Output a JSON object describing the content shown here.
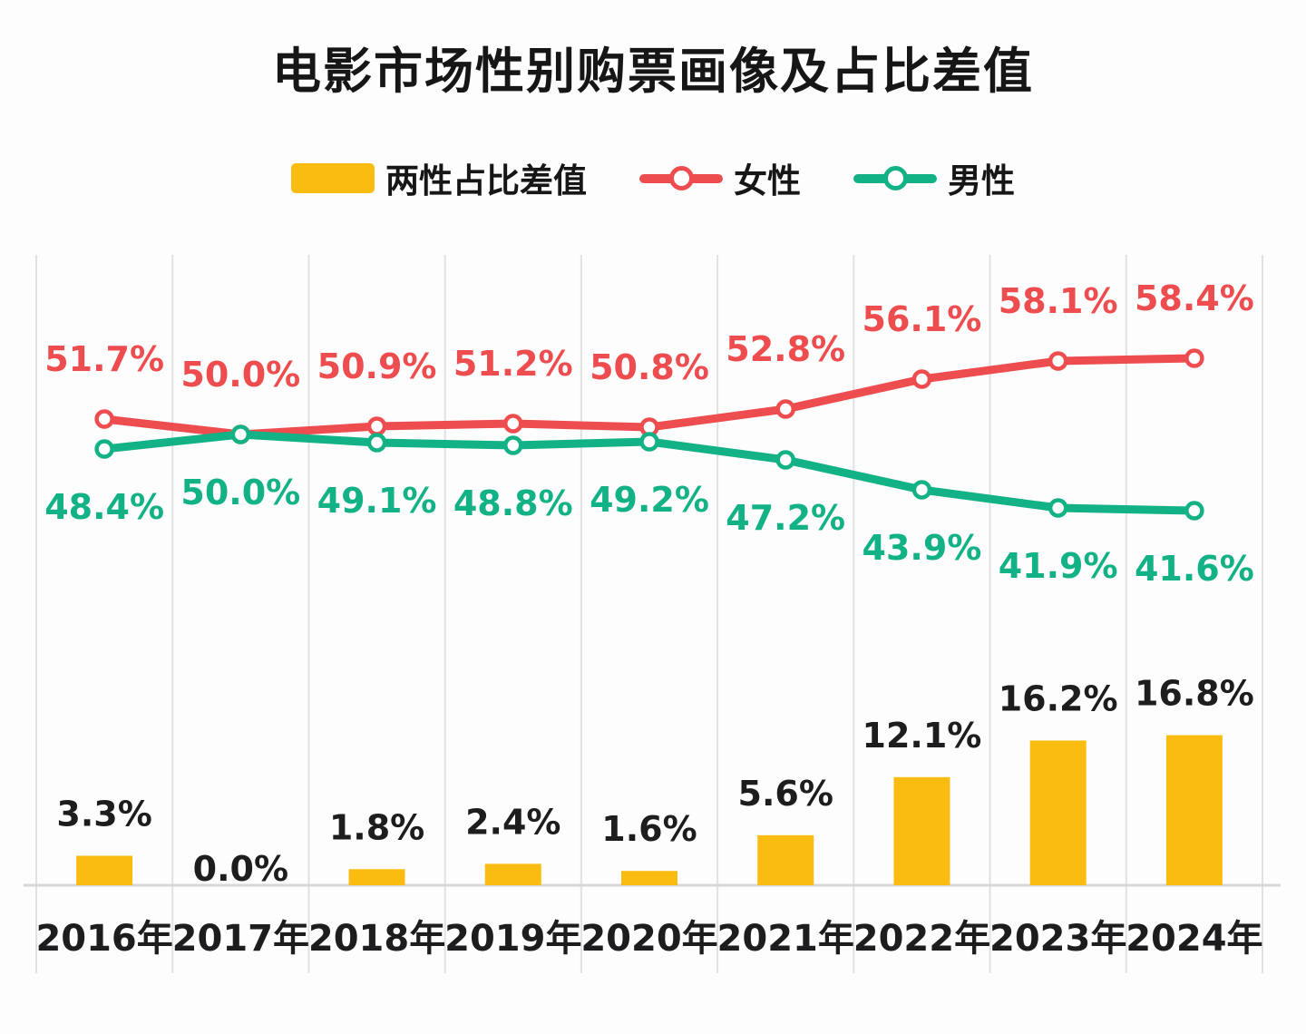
{
  "title": "电影市场性别购票画像及占比差值",
  "legend": {
    "items": [
      {
        "label": "两性占比差值",
        "swatch": "bar",
        "color": "#fbbc11"
      },
      {
        "label": "女性",
        "swatch": "line",
        "color": "#ee4d4f"
      },
      {
        "label": "男性",
        "swatch": "line",
        "color": "#12b286"
      }
    ]
  },
  "chart_data": {
    "type": "combo-bar-line",
    "title": "电影市场性别购票画像及占比差值",
    "categories": [
      "2016年",
      "2017年",
      "2018年",
      "2019年",
      "2020年",
      "2021年",
      "2022年",
      "2023年",
      "2024年"
    ],
    "series": [
      {
        "name": "两性占比差值",
        "id": "diff",
        "type": "bar",
        "color": "#fbbc11",
        "values": [
          3.3,
          0.0,
          1.8,
          2.4,
          1.6,
          5.6,
          12.1,
          16.2,
          16.8
        ]
      },
      {
        "name": "女性",
        "id": "female",
        "type": "line",
        "color": "#ee4d4f",
        "label_position": "above",
        "values": [
          51.7,
          50.0,
          50.9,
          51.2,
          50.8,
          52.8,
          56.1,
          58.1,
          58.4
        ]
      },
      {
        "name": "男性",
        "id": "male",
        "type": "line",
        "color": "#12b286",
        "label_position": "below",
        "values": [
          48.4,
          50.0,
          49.1,
          48.8,
          49.2,
          47.2,
          43.9,
          41.9,
          41.6
        ]
      }
    ],
    "value_suffix": "%",
    "value_decimals": 1,
    "grid": {
      "vertical": true,
      "horizontal": false
    },
    "legend_position": "top",
    "x_axis_position": "bottom",
    "colors": {
      "grid_line": "#e1e1e3",
      "baseline": "#d7d7d9",
      "label_text": "#1d1d1f",
      "marker_fill": "#ffffff"
    }
  }
}
